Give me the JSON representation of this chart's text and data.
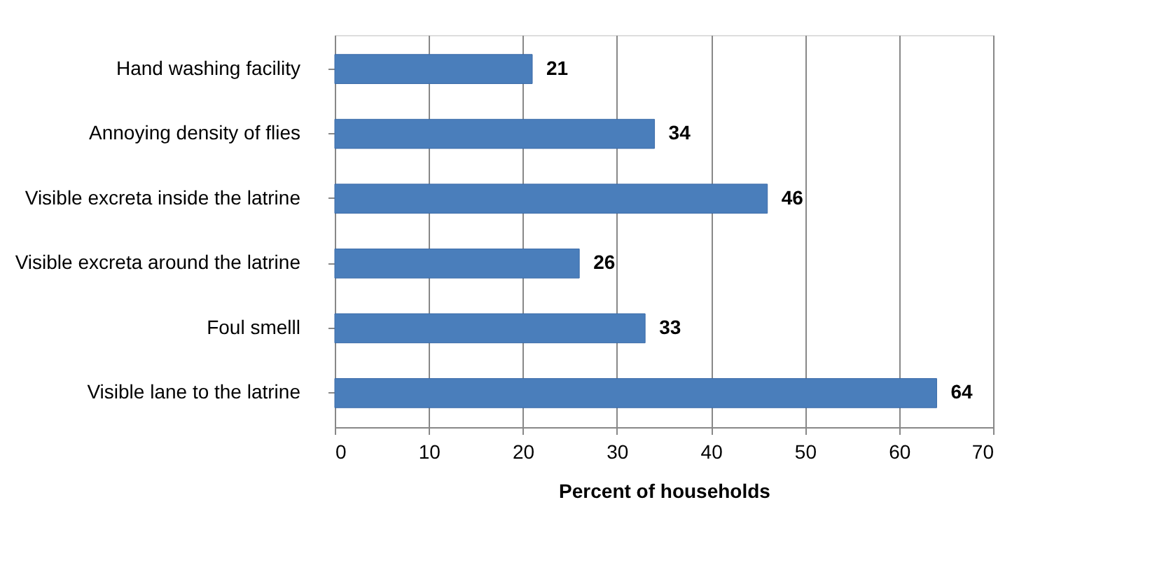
{
  "chart_data": {
    "type": "bar",
    "orientation": "horizontal",
    "xlabel": "Percent of households",
    "categories": [
      "Hand washing facility",
      "Annoying density of flies",
      "Visible excreta inside the latrine",
      "Visible excreta around the latrine",
      "Foul smelll",
      "Visible lane to the latrine"
    ],
    "values": [
      21,
      34,
      46,
      26,
      33,
      64
    ],
    "color": "#4a7ebb",
    "xlim": [
      0,
      70
    ],
    "xticks": [
      0,
      10,
      20,
      30,
      40,
      50,
      60,
      70
    ],
    "grid": "x",
    "data_labels": true
  }
}
